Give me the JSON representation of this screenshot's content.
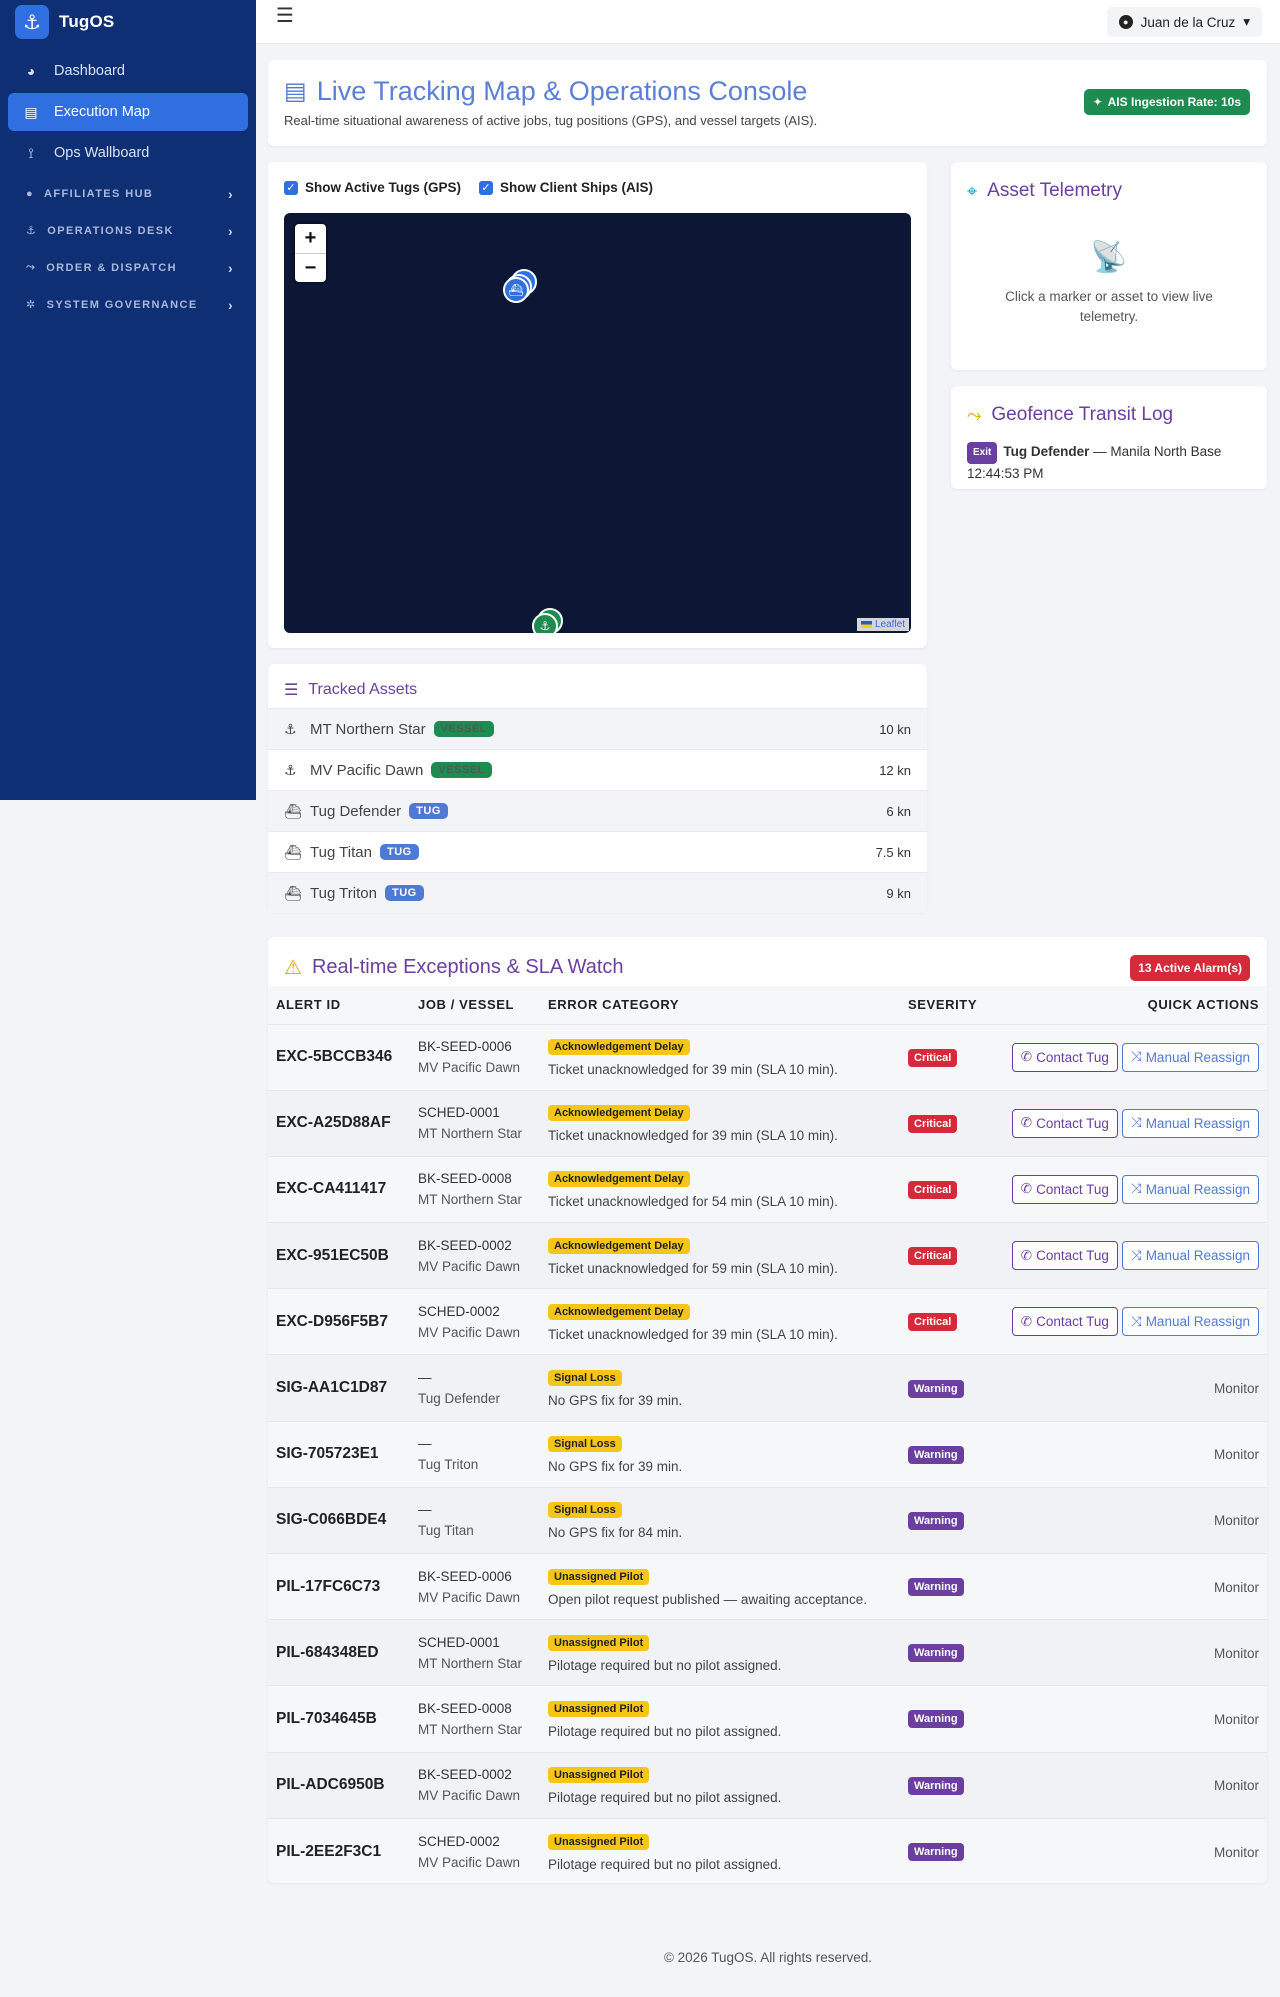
{
  "brand": {
    "name": "TugOS",
    "icon": "anchor-icon"
  },
  "sidebar": {
    "items": [
      {
        "label": "Dashboard",
        "icon": "dashboard-icon",
        "active": false
      },
      {
        "label": "Execution Map",
        "icon": "map-icon",
        "active": true
      },
      {
        "label": "Ops Wallboard",
        "icon": "broadcast-icon",
        "active": false
      }
    ],
    "groups": [
      {
        "label": "AFFILIATES HUB"
      },
      {
        "label": "OPERATIONS DESK"
      },
      {
        "label": "ORDER & DISPATCH"
      },
      {
        "label": "SYSTEM GOVERNANCE"
      }
    ]
  },
  "topbar": {
    "user": "Juan de la Cruz"
  },
  "header": {
    "title": "Live Tracking Map & Operations Console",
    "subtitle": "Real-time situational awareness of active jobs, tug positions (GPS), and vessel targets (AIS).",
    "ais_rate": "AIS Ingestion Rate: 10s"
  },
  "map_panel": {
    "toggle_tugs": "Show Active Tugs (GPS)",
    "toggle_ships": "Show Client Ships (AIS)",
    "zoom_in": "+",
    "zoom_out": "−",
    "attribution": "Leaflet"
  },
  "telemetry": {
    "title": "Asset Telemetry",
    "placeholder": "Click a marker or asset to view live telemetry."
  },
  "geofence": {
    "title": "Geofence Transit Log",
    "entries": [
      {
        "event": "Exit",
        "asset": "Tug Defender",
        "location": "— Manila North Base",
        "time": "12:44:53 PM"
      }
    ]
  },
  "assets": {
    "title": "Tracked Assets",
    "rows": [
      {
        "name": "MT Northern Star",
        "type": "VESSEL",
        "speed": "10 kn"
      },
      {
        "name": "MV Pacific Dawn",
        "type": "VESSEL",
        "speed": "12 kn"
      },
      {
        "name": "Tug Defender",
        "type": "TUG",
        "speed": "6 kn"
      },
      {
        "name": "Tug Titan",
        "type": "TUG",
        "speed": "7.5 kn"
      },
      {
        "name": "Tug Triton",
        "type": "TUG",
        "speed": "9 kn"
      }
    ]
  },
  "exceptions": {
    "title": "Real-time Exceptions & SLA Watch",
    "alarm_count": "13 Active Alarm(s)",
    "columns": [
      "ALERT ID",
      "JOB / VESSEL",
      "ERROR CATEGORY",
      "SEVERITY",
      "QUICK ACTIONS"
    ],
    "contact_label": "Contact Tug",
    "reassign_label": "Manual Reassign",
    "monitor_label": "Monitor",
    "rows": [
      {
        "id": "EXC-5BCCB346",
        "job": "BK-SEED-0006",
        "vessel": "MV Pacific Dawn",
        "category": "Acknowledgement Delay",
        "desc": "Ticket unacknowledged for 39 min (SLA 10 min).",
        "severity": "Critical"
      },
      {
        "id": "EXC-A25D88AF",
        "job": "SCHED-0001",
        "vessel": "MT Northern Star",
        "category": "Acknowledgement Delay",
        "desc": "Ticket unacknowledged for 39 min (SLA 10 min).",
        "severity": "Critical"
      },
      {
        "id": "EXC-CA411417",
        "job": "BK-SEED-0008",
        "vessel": "MT Northern Star",
        "category": "Acknowledgement Delay",
        "desc": "Ticket unacknowledged for 54 min (SLA 10 min).",
        "severity": "Critical"
      },
      {
        "id": "EXC-951EC50B",
        "job": "BK-SEED-0002",
        "vessel": "MV Pacific Dawn",
        "category": "Acknowledgement Delay",
        "desc": "Ticket unacknowledged for 59 min (SLA 10 min).",
        "severity": "Critical"
      },
      {
        "id": "EXC-D956F5B7",
        "job": "SCHED-0002",
        "vessel": "MV Pacific Dawn",
        "category": "Acknowledgement Delay",
        "desc": "Ticket unacknowledged for 39 min (SLA 10 min).",
        "severity": "Critical"
      },
      {
        "id": "SIG-AA1C1D87",
        "job": "—",
        "vessel": "Tug Defender",
        "category": "Signal Loss",
        "desc": "No GPS fix for 39 min.",
        "severity": "Warning"
      },
      {
        "id": "SIG-705723E1",
        "job": "—",
        "vessel": "Tug Triton",
        "category": "Signal Loss",
        "desc": "No GPS fix for 39 min.",
        "severity": "Warning"
      },
      {
        "id": "SIG-C066BDE4",
        "job": "—",
        "vessel": "Tug Titan",
        "category": "Signal Loss",
        "desc": "No GPS fix for 84 min.",
        "severity": "Warning"
      },
      {
        "id": "PIL-17FC6C73",
        "job": "BK-SEED-0006",
        "vessel": "MV Pacific Dawn",
        "category": "Unassigned Pilot",
        "desc": "Open pilot request published — awaiting acceptance.",
        "severity": "Warning"
      },
      {
        "id": "PIL-684348ED",
        "job": "SCHED-0001",
        "vessel": "MT Northern Star",
        "category": "Unassigned Pilot",
        "desc": "Pilotage required but no pilot assigned.",
        "severity": "Warning"
      },
      {
        "id": "PIL-7034645B",
        "job": "BK-SEED-0008",
        "vessel": "MT Northern Star",
        "category": "Unassigned Pilot",
        "desc": "Pilotage required but no pilot assigned.",
        "severity": "Warning"
      },
      {
        "id": "PIL-ADC6950B",
        "job": "BK-SEED-0002",
        "vessel": "MV Pacific Dawn",
        "category": "Unassigned Pilot",
        "desc": "Pilotage required but no pilot assigned.",
        "severity": "Warning"
      },
      {
        "id": "PIL-2EE2F3C1",
        "job": "SCHED-0002",
        "vessel": "MV Pacific Dawn",
        "category": "Unassigned Pilot",
        "desc": "Pilotage required but no pilot assigned.",
        "severity": "Warning"
      }
    ]
  },
  "footer": {
    "text": "© 2026 TugOS. All rights reserved."
  }
}
